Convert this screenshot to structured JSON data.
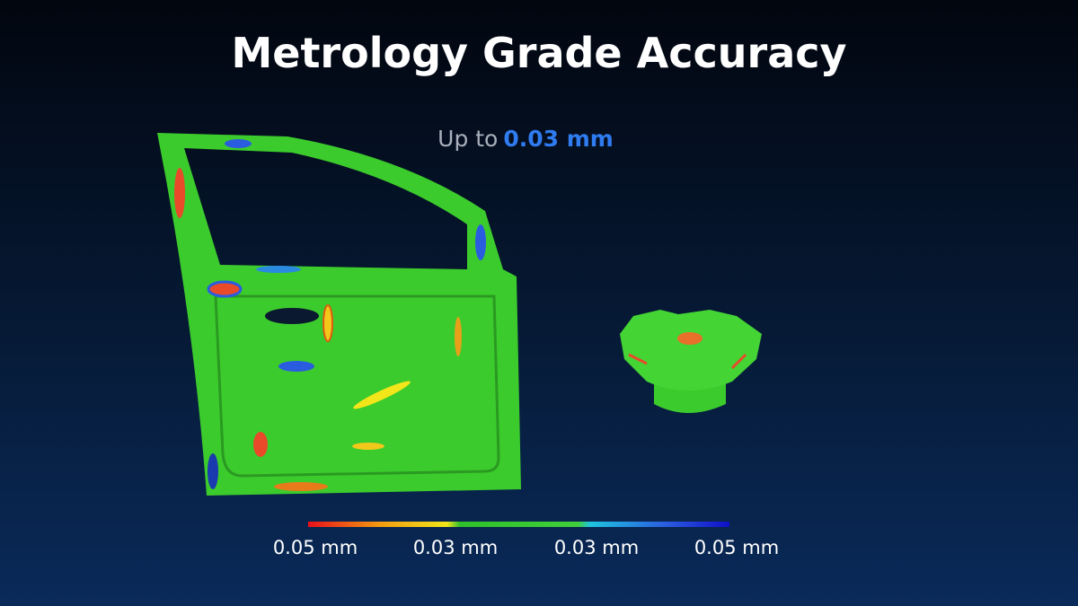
{
  "header": {
    "title": "Metrology Grade Accuracy",
    "subtitle": {
      "prefix": "Up to",
      "highlight": "0.03 mm"
    }
  },
  "legend": {
    "labels": [
      "0.05 mm",
      "0.03 mm",
      "0.03 mm",
      "0.05 mm"
    ]
  }
}
